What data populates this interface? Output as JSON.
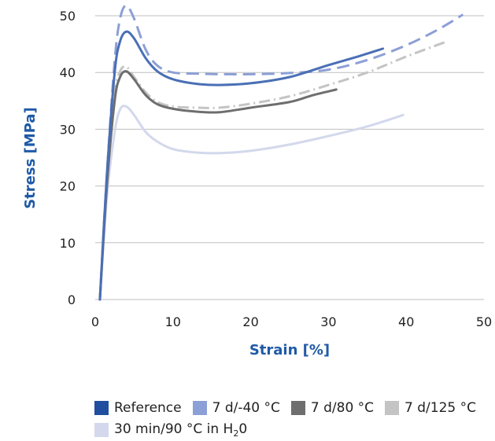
{
  "chart_data": {
    "type": "line",
    "xlabel": "Strain [%]",
    "ylabel": "Stress [MPa]",
    "xlim": [
      0,
      50
    ],
    "ylim": [
      0,
      50
    ],
    "xticks": [
      0,
      10,
      20,
      30,
      40,
      50
    ],
    "yticks": [
      0,
      10,
      20,
      30,
      40,
      50
    ],
    "grid": "horizontal",
    "legend_position": "bottom",
    "series": [
      {
        "name": "Reference",
        "color": "#4a6fb5",
        "style": "solid",
        "x": [
          0.6,
          1.5,
          2.5,
          3.2,
          4.0,
          5.0,
          6.5,
          8.0,
          10,
          13,
          16,
          20,
          25,
          30,
          34,
          37
        ],
        "y": [
          0,
          22,
          40,
          45.5,
          47.2,
          46,
          42.5,
          40.2,
          38.8,
          38.0,
          37.8,
          38.1,
          39.2,
          41.3,
          42.9,
          44.2
        ]
      },
      {
        "name": "7 d/-40 °C",
        "color": "#8c9fd6",
        "style": "dashed",
        "x": [
          0.6,
          1.5,
          2.5,
          3.2,
          4.0,
          5.0,
          6.5,
          8.0,
          10,
          13,
          16,
          20,
          25,
          30,
          35,
          40,
          44,
          47.3
        ],
        "y": [
          0,
          22,
          42,
          49.5,
          51.8,
          49.5,
          44,
          41.2,
          40,
          39.8,
          39.7,
          39.7,
          39.9,
          40.5,
          42.2,
          44.8,
          47.5,
          50.2
        ]
      },
      {
        "name": "7 d/80 °C",
        "color": "#6e6e6e",
        "style": "solid",
        "x": [
          0.6,
          1.5,
          2.5,
          3.2,
          4.0,
          5.0,
          6.5,
          8.0,
          10,
          13,
          16,
          20,
          25,
          28,
          31
        ],
        "y": [
          0,
          20,
          35,
          39.2,
          40.2,
          38.8,
          36,
          34.4,
          33.6,
          33.1,
          33.0,
          33.8,
          34.8,
          36.0,
          37.0
        ]
      },
      {
        "name": "7 d/125 °C",
        "color": "#c4c4c4",
        "style": "dashdot",
        "x": [
          0.6,
          1.5,
          2.5,
          3.2,
          4.0,
          5.0,
          6.5,
          8.0,
          10,
          13,
          16,
          20,
          25,
          30,
          35,
          40,
          45.3
        ],
        "y": [
          0,
          20,
          36,
          40.2,
          41,
          39.2,
          36.5,
          34.8,
          34,
          33.8,
          33.8,
          34.5,
          35.8,
          37.8,
          40,
          42.8,
          45.5
        ]
      },
      {
        "name": "30 min/90 °C in H",
        "name_subscript": "2",
        "name_suffix": "0",
        "color": "#d3d8ec",
        "style": "solid",
        "x": [
          0.6,
          1.5,
          2.5,
          3.2,
          4.0,
          5.0,
          6.5,
          8.0,
          10,
          13,
          16,
          20,
          25,
          30,
          35,
          39.6
        ],
        "y": [
          0,
          18,
          29.5,
          33.5,
          34.0,
          32.5,
          29.5,
          27.8,
          26.5,
          25.9,
          25.8,
          26.2,
          27.3,
          28.8,
          30.5,
          32.5
        ]
      }
    ]
  }
}
